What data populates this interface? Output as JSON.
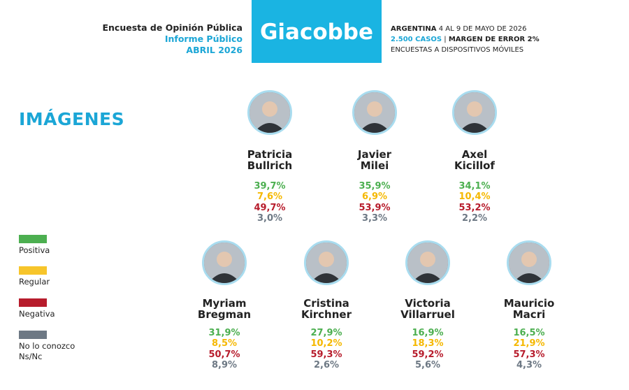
{
  "header": {
    "title": "Encuesta de Opinión Pública",
    "subtitle": "Informe Público",
    "date": "ABRIL 2026",
    "brand": "Giacobbe",
    "country": "ARGENTINA",
    "field_dates": "4 AL 9 DE MAYO DE 2026",
    "cases": "2.500 CASOS",
    "margin": "MARGEN DE ERROR 2%",
    "method": "ENCUESTAS A DISPOSITIVOS MÓVILES"
  },
  "section_title": "IMÁGENES",
  "legend": [
    [
      "Positiva"
    ],
    [
      "Regular"
    ],
    [
      "Negativa"
    ],
    [
      "No lo conozco",
      "Ns/Nc"
    ]
  ],
  "candidates": [
    {
      "name": [
        "Patricia",
        "Bullrich"
      ],
      "values": [
        "39,7%",
        "7,6%",
        "49,7%",
        "3,0%"
      ]
    },
    {
      "name": [
        "Javier",
        "Milei"
      ],
      "values": [
        "35,9%",
        "6,9%",
        "53,9%",
        "3,3%"
      ]
    },
    {
      "name": [
        "Axel",
        "Kicillof"
      ],
      "values": [
        "34,1%",
        "10,4%",
        "53,2%",
        "2,2%"
      ]
    },
    {
      "name": [
        "Myriam",
        "Bregman"
      ],
      "values": [
        "31,9%",
        "8,5%",
        "50,7%",
        "8,9%"
      ]
    },
    {
      "name": [
        "Cristina",
        "Kirchner"
      ],
      "values": [
        "27,9%",
        "10,2%",
        "59,3%",
        "2,6%"
      ]
    },
    {
      "name": [
        "Victoria",
        "Villarruel"
      ],
      "values": [
        "16,9%",
        "18,3%",
        "59,2%",
        "5,6%"
      ]
    },
    {
      "name": [
        "Mauricio",
        "Macri"
      ],
      "values": [
        "16,5%",
        "21,9%",
        "57,3%",
        "4,3%"
      ]
    }
  ]
}
